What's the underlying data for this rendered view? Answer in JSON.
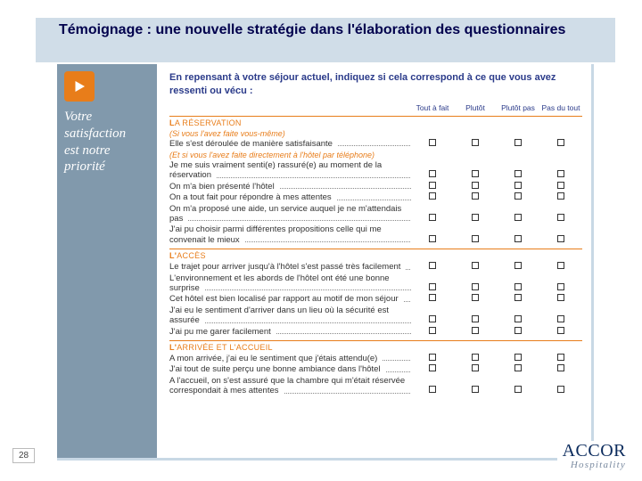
{
  "colors": {
    "accent_orange": "#e87d1a",
    "header_blue": "#d0dde8",
    "sidebar": "#8199ac",
    "title_text": "#00004d",
    "body_blue": "#2b3b8a"
  },
  "slide": {
    "title": "Témoignage : une nouvelle stratégie dans l'élaboration des questionnaires",
    "page_number": "28",
    "logo_main": "ACCOR",
    "logo_sub": "Hospitality"
  },
  "sidebar": {
    "play_icon": "play-icon",
    "tagline_l1": "Votre",
    "tagline_l2": "satisfaction",
    "tagline_l3": "est notre",
    "tagline_l4": "priorité"
  },
  "questionnaire": {
    "intro": "En repensant à votre séjour actuel, indiquez si cela correspond à ce que vous avez ressenti ou vécu :",
    "scale": {
      "c1": "Tout à fait",
      "c2": "Plutôt",
      "c3": "Plutôt pas",
      "c4": "Pas du tout"
    },
    "sections": [
      {
        "title_small": "L",
        "title_rest": "A RÉSERVATION",
        "groups": [
          {
            "note": "(Si vous l'avez faite vous-même)",
            "items": [
              "Elle s'est déroulée de manière satisfaisante"
            ]
          },
          {
            "note": "(Et si vous l'avez faite directement à l'hôtel par téléphone)",
            "items": [
              "Je me suis vraiment senti(e) rassuré(e) au moment de la réservation",
              "On m'a bien présenté l'hôtel",
              "On a tout fait pour répondre à mes attentes",
              "On m'a proposé une aide, un service auquel je ne m'attendais pas"
            ]
          },
          {
            "note": "",
            "items": [
              "J'ai pu choisir parmi différentes propositions celle qui me convenait le mieux"
            ]
          }
        ]
      },
      {
        "title_small": "L'",
        "title_rest": "ACCÈS",
        "groups": [
          {
            "note": "",
            "items": [
              "Le trajet pour arriver jusqu'à l'hôtel s'est passé très facilement",
              "L'environnement et les abords de l'hôtel ont été une bonne surprise",
              "Cet hôtel est bien localisé par rapport au motif de mon séjour",
              "J'ai eu le sentiment d'arriver dans un lieu où la sécurité est assurée",
              "J'ai pu me garer facilement"
            ]
          }
        ]
      },
      {
        "title_small": "L'",
        "title_rest": "ARRIVÉE ET L'ACCUEIL",
        "groups": [
          {
            "note": "",
            "items": [
              "A mon arrivée, j'ai eu le sentiment que j'étais attendu(e)",
              "J'ai tout de suite perçu une bonne ambiance dans l'hôtel",
              "A l'accueil, on s'est assuré que la chambre qui m'était réservée correspondait à mes attentes"
            ]
          }
        ]
      }
    ]
  }
}
